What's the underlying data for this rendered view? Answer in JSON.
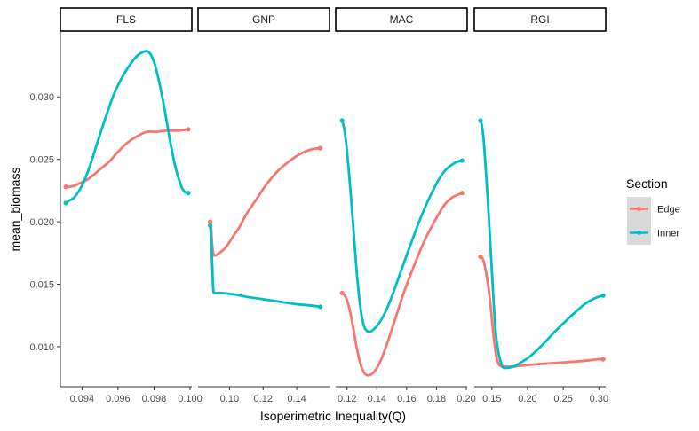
{
  "chart_data": {
    "type": "line",
    "xlabel": "Isoperimetric Inequality(Q)",
    "ylabel": "mean_biomass",
    "ylim": [
      0.0068,
      0.0352
    ],
    "yticks": [
      0.01,
      0.015,
      0.02,
      0.025,
      0.03
    ],
    "ytick_labels": [
      "0.010",
      "0.015",
      "0.020",
      "0.025",
      "0.030"
    ],
    "grid": false,
    "legend": {
      "title": "Section",
      "position": "right",
      "entries": [
        {
          "name": "Edge",
          "color": "#F8766D"
        },
        {
          "name": "Inner",
          "color": "#00BFC4"
        }
      ]
    },
    "facets": [
      {
        "name": "FLS",
        "xlim": [
          0.0928,
          0.1001
        ],
        "xticks": [
          0.094,
          0.096,
          0.098,
          0.1
        ],
        "xtick_labels": [
          "0.094",
          "0.096",
          "0.098",
          "0.100"
        ],
        "series": [
          {
            "name": "Edge",
            "x": [
              0.0931,
              0.0933,
              0.0936,
              0.0939,
              0.0942,
              0.0946,
              0.095,
              0.0955,
              0.096,
              0.0965,
              0.097,
              0.0976,
              0.0981,
              0.0987,
              0.0993,
              0.0999
            ],
            "y": [
              0.0228,
              0.0228,
              0.0229,
              0.0231,
              0.0233,
              0.0237,
              0.0242,
              0.0248,
              0.0256,
              0.0263,
              0.0268,
              0.0272,
              0.0272,
              0.0273,
              0.0273,
              0.0274
            ]
          },
          {
            "name": "Inner",
            "x": [
              0.0931,
              0.0933,
              0.0936,
              0.094,
              0.0944,
              0.0948,
              0.0953,
              0.0958,
              0.0964,
              0.097,
              0.0974,
              0.0977,
              0.098,
              0.0983,
              0.0986,
              0.0989,
              0.0992,
              0.0995,
              0.0997,
              0.0999
            ],
            "y": [
              0.0215,
              0.0217,
              0.022,
              0.0229,
              0.0243,
              0.0261,
              0.0283,
              0.0303,
              0.032,
              0.0332,
              0.0336,
              0.0336,
              0.0328,
              0.0311,
              0.0289,
              0.0264,
              0.0243,
              0.0229,
              0.0224,
              0.0223
            ]
          }
        ]
      },
      {
        "name": "GNP",
        "xlim": [
          0.0813,
          0.1595
        ],
        "xticks": [
          0.1,
          0.12,
          0.14
        ],
        "xtick_labels": [
          "0.10",
          "0.12",
          "0.14"
        ],
        "series": [
          {
            "name": "Edge",
            "x": [
              0.0885,
              0.0891,
              0.0897,
              0.0905,
              0.0915,
              0.093,
              0.095,
              0.098,
              0.102,
              0.106,
              0.11,
              0.116,
              0.122,
              0.129,
              0.136,
              0.143,
              0.149,
              0.154
            ],
            "y": [
              0.02,
              0.0195,
              0.0182,
              0.0174,
              0.0173,
              0.0174,
              0.0176,
              0.018,
              0.0188,
              0.0196,
              0.0206,
              0.0218,
              0.023,
              0.0241,
              0.0249,
              0.0255,
              0.0258,
              0.0259
            ]
          },
          {
            "name": "Inner",
            "x": [
              0.0885,
              0.0888,
              0.0893,
              0.0898,
              0.0904,
              0.0915,
              0.095,
              0.102,
              0.11,
              0.12,
              0.13,
              0.14,
              0.148,
              0.154
            ],
            "y": [
              0.0197,
              0.0193,
              0.018,
              0.0163,
              0.0145,
              0.0143,
              0.0143,
              0.0142,
              0.014,
              0.0138,
              0.0136,
              0.0134,
              0.0133,
              0.0132
            ]
          }
        ]
      },
      {
        "name": "MAC",
        "xlim": [
          0.1124,
          0.2006
        ],
        "xticks": [
          0.12,
          0.14,
          0.16,
          0.18,
          0.2
        ],
        "xtick_labels": [
          "0.12",
          "0.14",
          "0.16",
          "0.18",
          "0.20"
        ],
        "series": [
          {
            "name": "Edge",
            "x": [
              0.1167,
              0.119,
              0.1215,
              0.124,
              0.1265,
              0.129,
              0.1315,
              0.134,
              0.1365,
              0.1395,
              0.143,
              0.147,
              0.152,
              0.158,
              0.165,
              0.172,
              0.179,
              0.185,
              0.19,
              0.195,
              0.1972
            ],
            "y": [
              0.0143,
              0.014,
              0.0131,
              0.0116,
              0.0099,
              0.0086,
              0.0079,
              0.0077,
              0.0078,
              0.0082,
              0.009,
              0.0103,
              0.0121,
              0.0143,
              0.0165,
              0.0185,
              0.0201,
              0.0213,
              0.0219,
              0.0222,
              0.0223
            ]
          },
          {
            "name": "Inner",
            "x": [
              0.1167,
              0.118,
              0.1195,
              0.121,
              0.1225,
              0.124,
              0.1255,
              0.127,
              0.129,
              0.131,
              0.133,
              0.1355,
              0.138,
              0.141,
              0.145,
              0.15,
              0.156,
              0.163,
              0.17,
              0.178,
              0.185,
              0.192,
              0.1972
            ],
            "y": [
              0.0281,
              0.0275,
              0.0262,
              0.0243,
              0.0222,
              0.0199,
              0.0175,
              0.0153,
              0.0131,
              0.0118,
              0.0113,
              0.0112,
              0.0114,
              0.0118,
              0.0126,
              0.014,
              0.016,
              0.0183,
              0.0205,
              0.0226,
              0.024,
              0.0247,
              0.0249
            ]
          }
        ]
      },
      {
        "name": "RGI",
        "xlim": [
          0.1253,
          0.3096
        ],
        "xticks": [
          0.15,
          0.2,
          0.25,
          0.3
        ],
        "xtick_labels": [
          "0.15",
          "0.20",
          "0.25",
          "0.30"
        ],
        "series": [
          {
            "name": "Edge",
            "x": [
              0.134,
              0.1375,
              0.141,
              0.145,
              0.149,
              0.153,
              0.157,
              0.161,
              0.165,
              0.17,
              0.18,
              0.195,
              0.215,
              0.24,
              0.265,
              0.285,
              0.3,
              0.306
            ],
            "y": [
              0.0172,
              0.017,
              0.0162,
              0.0148,
              0.0128,
              0.0105,
              0.009,
              0.0085,
              0.0084,
              0.0084,
              0.0084,
              0.0085,
              0.0086,
              0.0087,
              0.0088,
              0.0089,
              0.009,
              0.009
            ]
          },
          {
            "name": "Inner",
            "x": [
              0.134,
              0.136,
              0.1385,
              0.141,
              0.144,
              0.147,
              0.15,
              0.153,
              0.156,
              0.16,
              0.165,
              0.17,
              0.18,
              0.19,
              0.205,
              0.22,
              0.24,
              0.26,
              0.28,
              0.295,
              0.306
            ],
            "y": [
              0.0281,
              0.0277,
              0.0265,
              0.0245,
              0.022,
              0.019,
              0.016,
              0.013,
              0.0108,
              0.0093,
              0.0084,
              0.0083,
              0.0084,
              0.0087,
              0.0093,
              0.0101,
              0.0113,
              0.0124,
              0.0134,
              0.0139,
              0.0141
            ]
          }
        ]
      }
    ]
  }
}
